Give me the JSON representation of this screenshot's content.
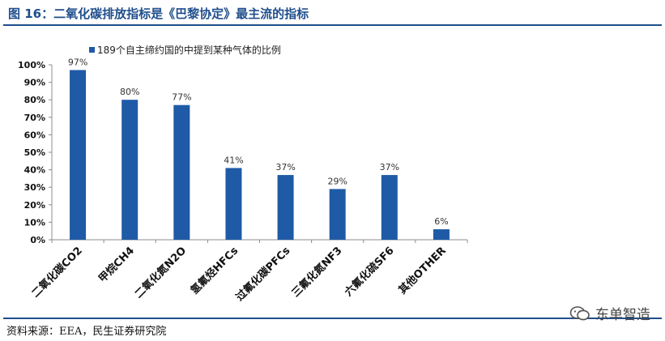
{
  "figure": {
    "title": "图 16：二氧化碳排放指标是《巴黎协定》最主流的指标",
    "source": "资料来源：EEA，民生证券研究院",
    "watermark": "东单智造"
  },
  "colors": {
    "bar": "#1f5aa6",
    "accent": "#1f4e8c",
    "axis": "#8c8c8c"
  },
  "chart_data": {
    "type": "bar",
    "categories": [
      "二氧化碳CO2",
      "甲烷CH4",
      "二氧化氮N2O",
      "氢氟烃HFCs",
      "过氟化碳PFCs",
      "三氟化氮NF3",
      "六氟化硫SF6",
      "其他OTHER"
    ],
    "series": [
      {
        "name": "189个自主缔约国的中提到某种气体的比例",
        "values": [
          97,
          80,
          77,
          41,
          37,
          29,
          37,
          6
        ]
      }
    ],
    "data_labels": [
      "97%",
      "80%",
      "77%",
      "41%",
      "37%",
      "29%",
      "37%",
      "6%"
    ],
    "y_ticks": [
      "0%",
      "10%",
      "20%",
      "30%",
      "40%",
      "50%",
      "60%",
      "70%",
      "80%",
      "90%",
      "100%"
    ],
    "ylim": [
      0,
      100
    ],
    "legend_position": "top-left",
    "grid": false,
    "xlabel": "",
    "ylabel": ""
  }
}
